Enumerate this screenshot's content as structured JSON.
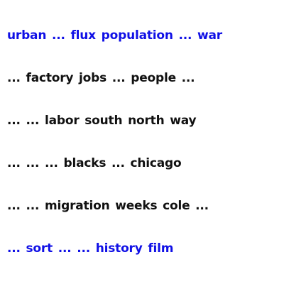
{
  "colors": {
    "highlight": "#1010e6",
    "default": "#111111",
    "background": "#ffffff"
  },
  "phrases": [
    {
      "text": "urban ... flux population ... war",
      "color": "highlight"
    },
    {
      "text": "... factory jobs ... people ...",
      "color": "default"
    },
    {
      "text": "... ... labor south north way",
      "color": "default"
    },
    {
      "text": "... ... ... blacks ... chicago",
      "color": "default"
    },
    {
      "text": "... ... migration weeks cole ...",
      "color": "default"
    },
    {
      "text": "... sort ... ... history film",
      "color": "highlight"
    }
  ]
}
